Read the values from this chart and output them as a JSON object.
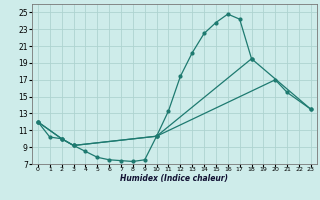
{
  "xlabel": "Humidex (Indice chaleur)",
  "bg_color": "#ceecea",
  "grid_color": "#aed4d0",
  "line_color": "#1e7a70",
  "curve1_x": [
    0,
    1,
    2,
    3,
    4,
    5,
    6,
    7,
    8,
    9,
    10,
    11,
    12,
    13,
    14,
    15,
    16,
    17,
    18
  ],
  "curve1_y": [
    12,
    10.2,
    10.0,
    9.2,
    8.5,
    7.8,
    7.5,
    7.4,
    7.3,
    7.5,
    10.3,
    13.3,
    17.4,
    20.2,
    22.5,
    23.8,
    24.8,
    24.2,
    19.5
  ],
  "curve2_x": [
    0,
    2,
    3,
    10,
    18,
    23
  ],
  "curve2_y": [
    12,
    10.0,
    9.2,
    10.3,
    19.5,
    13.5
  ],
  "curve3_x": [
    0,
    2,
    3,
    10,
    20,
    21,
    23
  ],
  "curve3_y": [
    12,
    10.0,
    9.2,
    10.3,
    17.0,
    15.5,
    13.5
  ],
  "ylim": [
    7,
    26
  ],
  "xlim": [
    -0.5,
    23.5
  ],
  "yticks": [
    7,
    9,
    11,
    13,
    15,
    17,
    19,
    21,
    23,
    25
  ],
  "xticks": [
    0,
    1,
    2,
    3,
    4,
    5,
    6,
    7,
    8,
    9,
    10,
    11,
    12,
    13,
    14,
    15,
    16,
    17,
    18,
    19,
    20,
    21,
    22,
    23
  ]
}
